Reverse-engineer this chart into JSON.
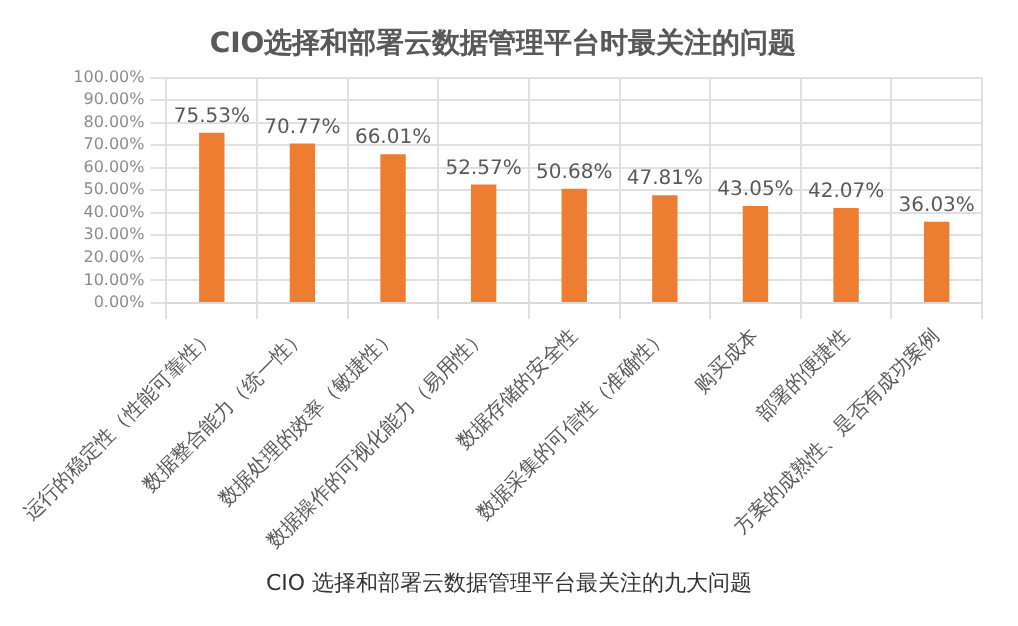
{
  "chart_data": {
    "type": "bar",
    "title": "CIO选择和部署云数据管理平台时最关注的问题",
    "categories": [
      "运行的稳定性（性能可靠性）",
      "数据整合能力（统一性）",
      "数据处理的效率（敏捷性）",
      "数据操作的可视化能力（易用性）",
      "数据存储的安全性",
      "数据采集的可信性（准确性）",
      "购买成本",
      "部署的便捷性",
      "方案的成熟性、是否有成功案例"
    ],
    "values": [
      75.53,
      70.77,
      66.01,
      52.57,
      50.68,
      47.81,
      43.05,
      42.07,
      36.03
    ],
    "value_labels": [
      "75.53%",
      "70.77%",
      "66.01%",
      "52.57%",
      "50.68%",
      "47.81%",
      "43.05%",
      "42.07%",
      "36.03%"
    ],
    "color": "#ed7d31",
    "ylim": [
      0,
      100
    ],
    "yticks": [
      {
        "value": 0,
        "label": "0.00%"
      },
      {
        "value": 10,
        "label": "10.00%"
      },
      {
        "value": 20,
        "label": "20.00%"
      },
      {
        "value": 30,
        "label": "30.00%"
      },
      {
        "value": 40,
        "label": "40.00%"
      },
      {
        "value": 50,
        "label": "50.00%"
      },
      {
        "value": 60,
        "label": "60.00%"
      },
      {
        "value": 70,
        "label": "70.00%"
      },
      {
        "value": 80,
        "label": "80.00%"
      },
      {
        "value": 90,
        "label": "90.00%"
      },
      {
        "value": 100,
        "label": "100.00%"
      }
    ],
    "grid": true,
    "annotations": [
      "CIO 选择和部署云数据管理平台最关注的九大问题"
    ]
  }
}
